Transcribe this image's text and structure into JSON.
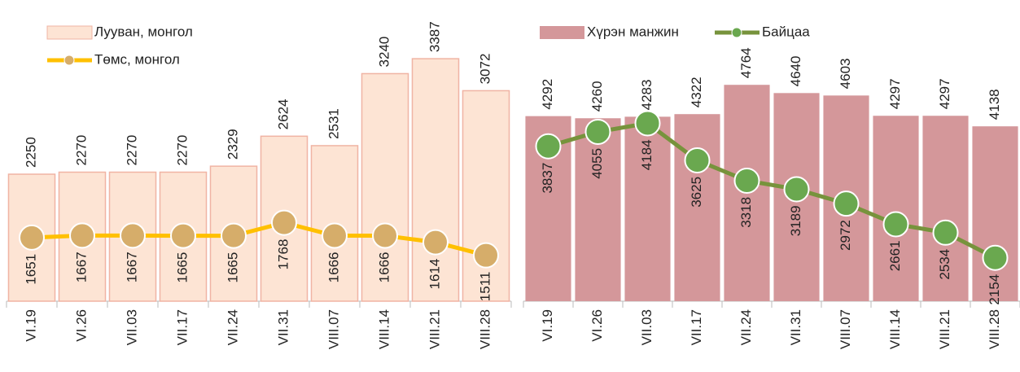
{
  "chart_data": [
    {
      "type": "bar_line",
      "categories": [
        "VI.19",
        "VI.26",
        "VII.03",
        "VII.17",
        "VII.24",
        "VII.31",
        "VIII.07",
        "VIII.14",
        "VIII.21",
        "VIII.28"
      ],
      "series": [
        {
          "name": "Лууван, монгол",
          "type": "bar",
          "color": "#fde4d4",
          "values": [
            2250,
            2270,
            2270,
            2270,
            2329,
            2624,
            2531,
            3240,
            3387,
            3072
          ]
        },
        {
          "name": "Төмс, монгол",
          "type": "line",
          "axis": "y2",
          "color": "#ffc000",
          "marker_color": "#d6ad6a",
          "values": [
            1651,
            1667,
            1667,
            1665,
            1665,
            1768,
            1666,
            1666,
            1614,
            1511
          ]
        }
      ],
      "ylim": [
        1000,
        3500
      ],
      "y2lim": [
        1150,
        3150
      ],
      "legend": "top-left"
    },
    {
      "type": "bar_line",
      "categories": [
        "VI.19",
        "VI.26",
        "VII.03",
        "VII.17",
        "VII.24",
        "VII.31",
        "VIII.07",
        "VIII.14",
        "VIII.21",
        "VIII.28"
      ],
      "series": [
        {
          "name": "Хүрэн манжин",
          "type": "bar",
          "color": "#d4979a",
          "values": [
            4292,
            4260,
            4283,
            4322,
            4764,
            4640,
            4603,
            4297,
            4297,
            4138
          ]
        },
        {
          "name": "Байцаа",
          "type": "line",
          "color": "#77933c",
          "marker_color": "#6aa84f",
          "values": [
            3837,
            4055,
            4184,
            3625,
            3318,
            3189,
            2972,
            2661,
            2534,
            2154
          ]
        }
      ],
      "ylim": [
        1500,
        5000
      ],
      "legend": "top"
    }
  ]
}
